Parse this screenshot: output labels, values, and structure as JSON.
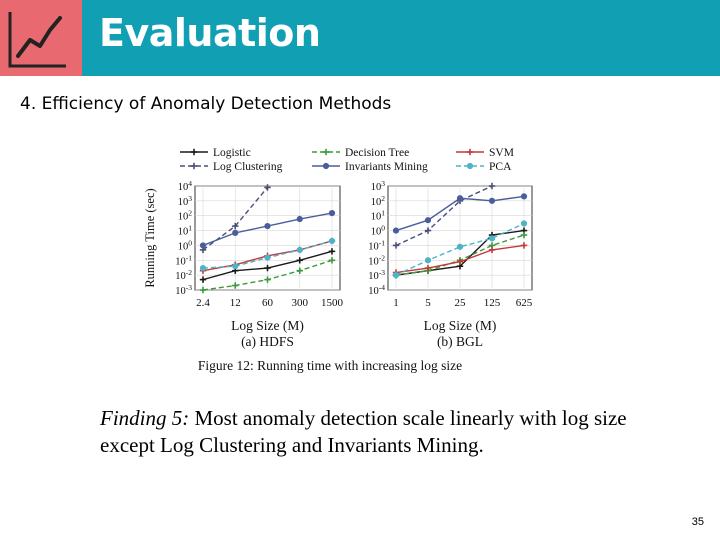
{
  "slide": {
    "title": "Evaluation",
    "subtitle": "4. Efficiency of Anomaly Detection Methods",
    "finding_lead": "Finding 5:",
    "finding_text": " Most anomaly detection scale linearly with log size except Log Clustering and Invariants Mining.",
    "page_number": "35",
    "colors": {
      "header": "#109fb3",
      "header_icon_bg": "#e8696f"
    }
  },
  "chart_data": [
    {
      "type": "line",
      "subplot_label": "(a) HDFS",
      "xlabel": "Log Size (M)",
      "ylabel": "Running Time (sec)",
      "categories": [
        "2.4",
        "12",
        "60",
        "300",
        "1500"
      ],
      "y_scale": "log",
      "yticks": [
        "10-3",
        "10-2",
        "10-1",
        "100",
        "101",
        "102",
        "103",
        "104"
      ],
      "ylim": [
        0.001,
        10000
      ],
      "series": [
        {
          "name": "Logistic",
          "color": "#1a1a1a",
          "dash": false,
          "marker": "plus",
          "values": [
            0.005,
            0.02,
            0.03,
            0.1,
            0.4
          ]
        },
        {
          "name": "Log Clustering",
          "color": "#4a4f7a",
          "dash": true,
          "marker": "plus",
          "values": [
            0.5,
            20,
            8000,
            null,
            null
          ]
        },
        {
          "name": "Decision Tree",
          "color": "#3a9a3a",
          "dash": true,
          "marker": "plus",
          "values": [
            0.001,
            0.002,
            0.005,
            0.02,
            0.1
          ]
        },
        {
          "name": "Invariants Mining",
          "color": "#4a5e9c",
          "dash": false,
          "marker": "circle",
          "values": [
            1,
            7,
            20,
            60,
            150
          ]
        },
        {
          "name": "SVM",
          "color": "#c23a3a",
          "dash": false,
          "marker": "plus",
          "values": [
            0.02,
            0.05,
            0.2,
            0.5,
            2
          ]
        },
        {
          "name": "PCA",
          "color": "#4cb3c9",
          "dash": true,
          "marker": "circle",
          "values": [
            0.03,
            0.04,
            0.15,
            0.5,
            2
          ]
        }
      ]
    },
    {
      "type": "line",
      "subplot_label": "(b) BGL",
      "xlabel": "Log Size (M)",
      "ylabel": "",
      "categories": [
        "1",
        "5",
        "25",
        "125",
        "625"
      ],
      "y_scale": "log",
      "yticks": [
        "10-4",
        "10-3",
        "10-2",
        "10-1",
        "100",
        "101",
        "102",
        "103"
      ],
      "ylim": [
        0.0001,
        1000
      ],
      "series": [
        {
          "name": "Logistic",
          "color": "#1a1a1a",
          "dash": false,
          "marker": "plus",
          "values": [
            0.001,
            0.002,
            0.004,
            0.5,
            1
          ]
        },
        {
          "name": "Log Clustering",
          "color": "#4a4f7a",
          "dash": true,
          "marker": "plus",
          "values": [
            0.1,
            1,
            100,
            1000,
            null
          ]
        },
        {
          "name": "Decision Tree",
          "color": "#3a9a3a",
          "dash": true,
          "marker": "plus",
          "values": [
            0.001,
            0.002,
            0.01,
            0.1,
            0.5
          ]
        },
        {
          "name": "Invariants Mining",
          "color": "#4a5e9c",
          "dash": false,
          "marker": "circle",
          "values": [
            1,
            5,
            150,
            100,
            200
          ]
        },
        {
          "name": "SVM",
          "color": "#c23a3a",
          "dash": false,
          "marker": "plus",
          "values": [
            0.0015,
            0.003,
            0.008,
            0.05,
            0.1
          ]
        },
        {
          "name": "PCA",
          "color": "#4cb3c9",
          "dash": true,
          "marker": "circle",
          "values": [
            0.001,
            0.01,
            0.08,
            0.3,
            3
          ]
        }
      ]
    }
  ],
  "figure": {
    "caption": "Figure 12: Running time with increasing log size",
    "legend": [
      {
        "name": "Logistic",
        "color": "#1a1a1a",
        "dash": false,
        "marker": "plus"
      },
      {
        "name": "Decision Tree",
        "color": "#3a9a3a",
        "dash": true,
        "marker": "plus"
      },
      {
        "name": "SVM",
        "color": "#c23a3a",
        "dash": false,
        "marker": "plus"
      },
      {
        "name": "Log Clustering",
        "color": "#4a4f7a",
        "dash": true,
        "marker": "plus"
      },
      {
        "name": "Invariants Mining",
        "color": "#4a5e9c",
        "dash": false,
        "marker": "circle"
      },
      {
        "name": "PCA",
        "color": "#4cb3c9",
        "dash": true,
        "marker": "circle"
      }
    ]
  }
}
